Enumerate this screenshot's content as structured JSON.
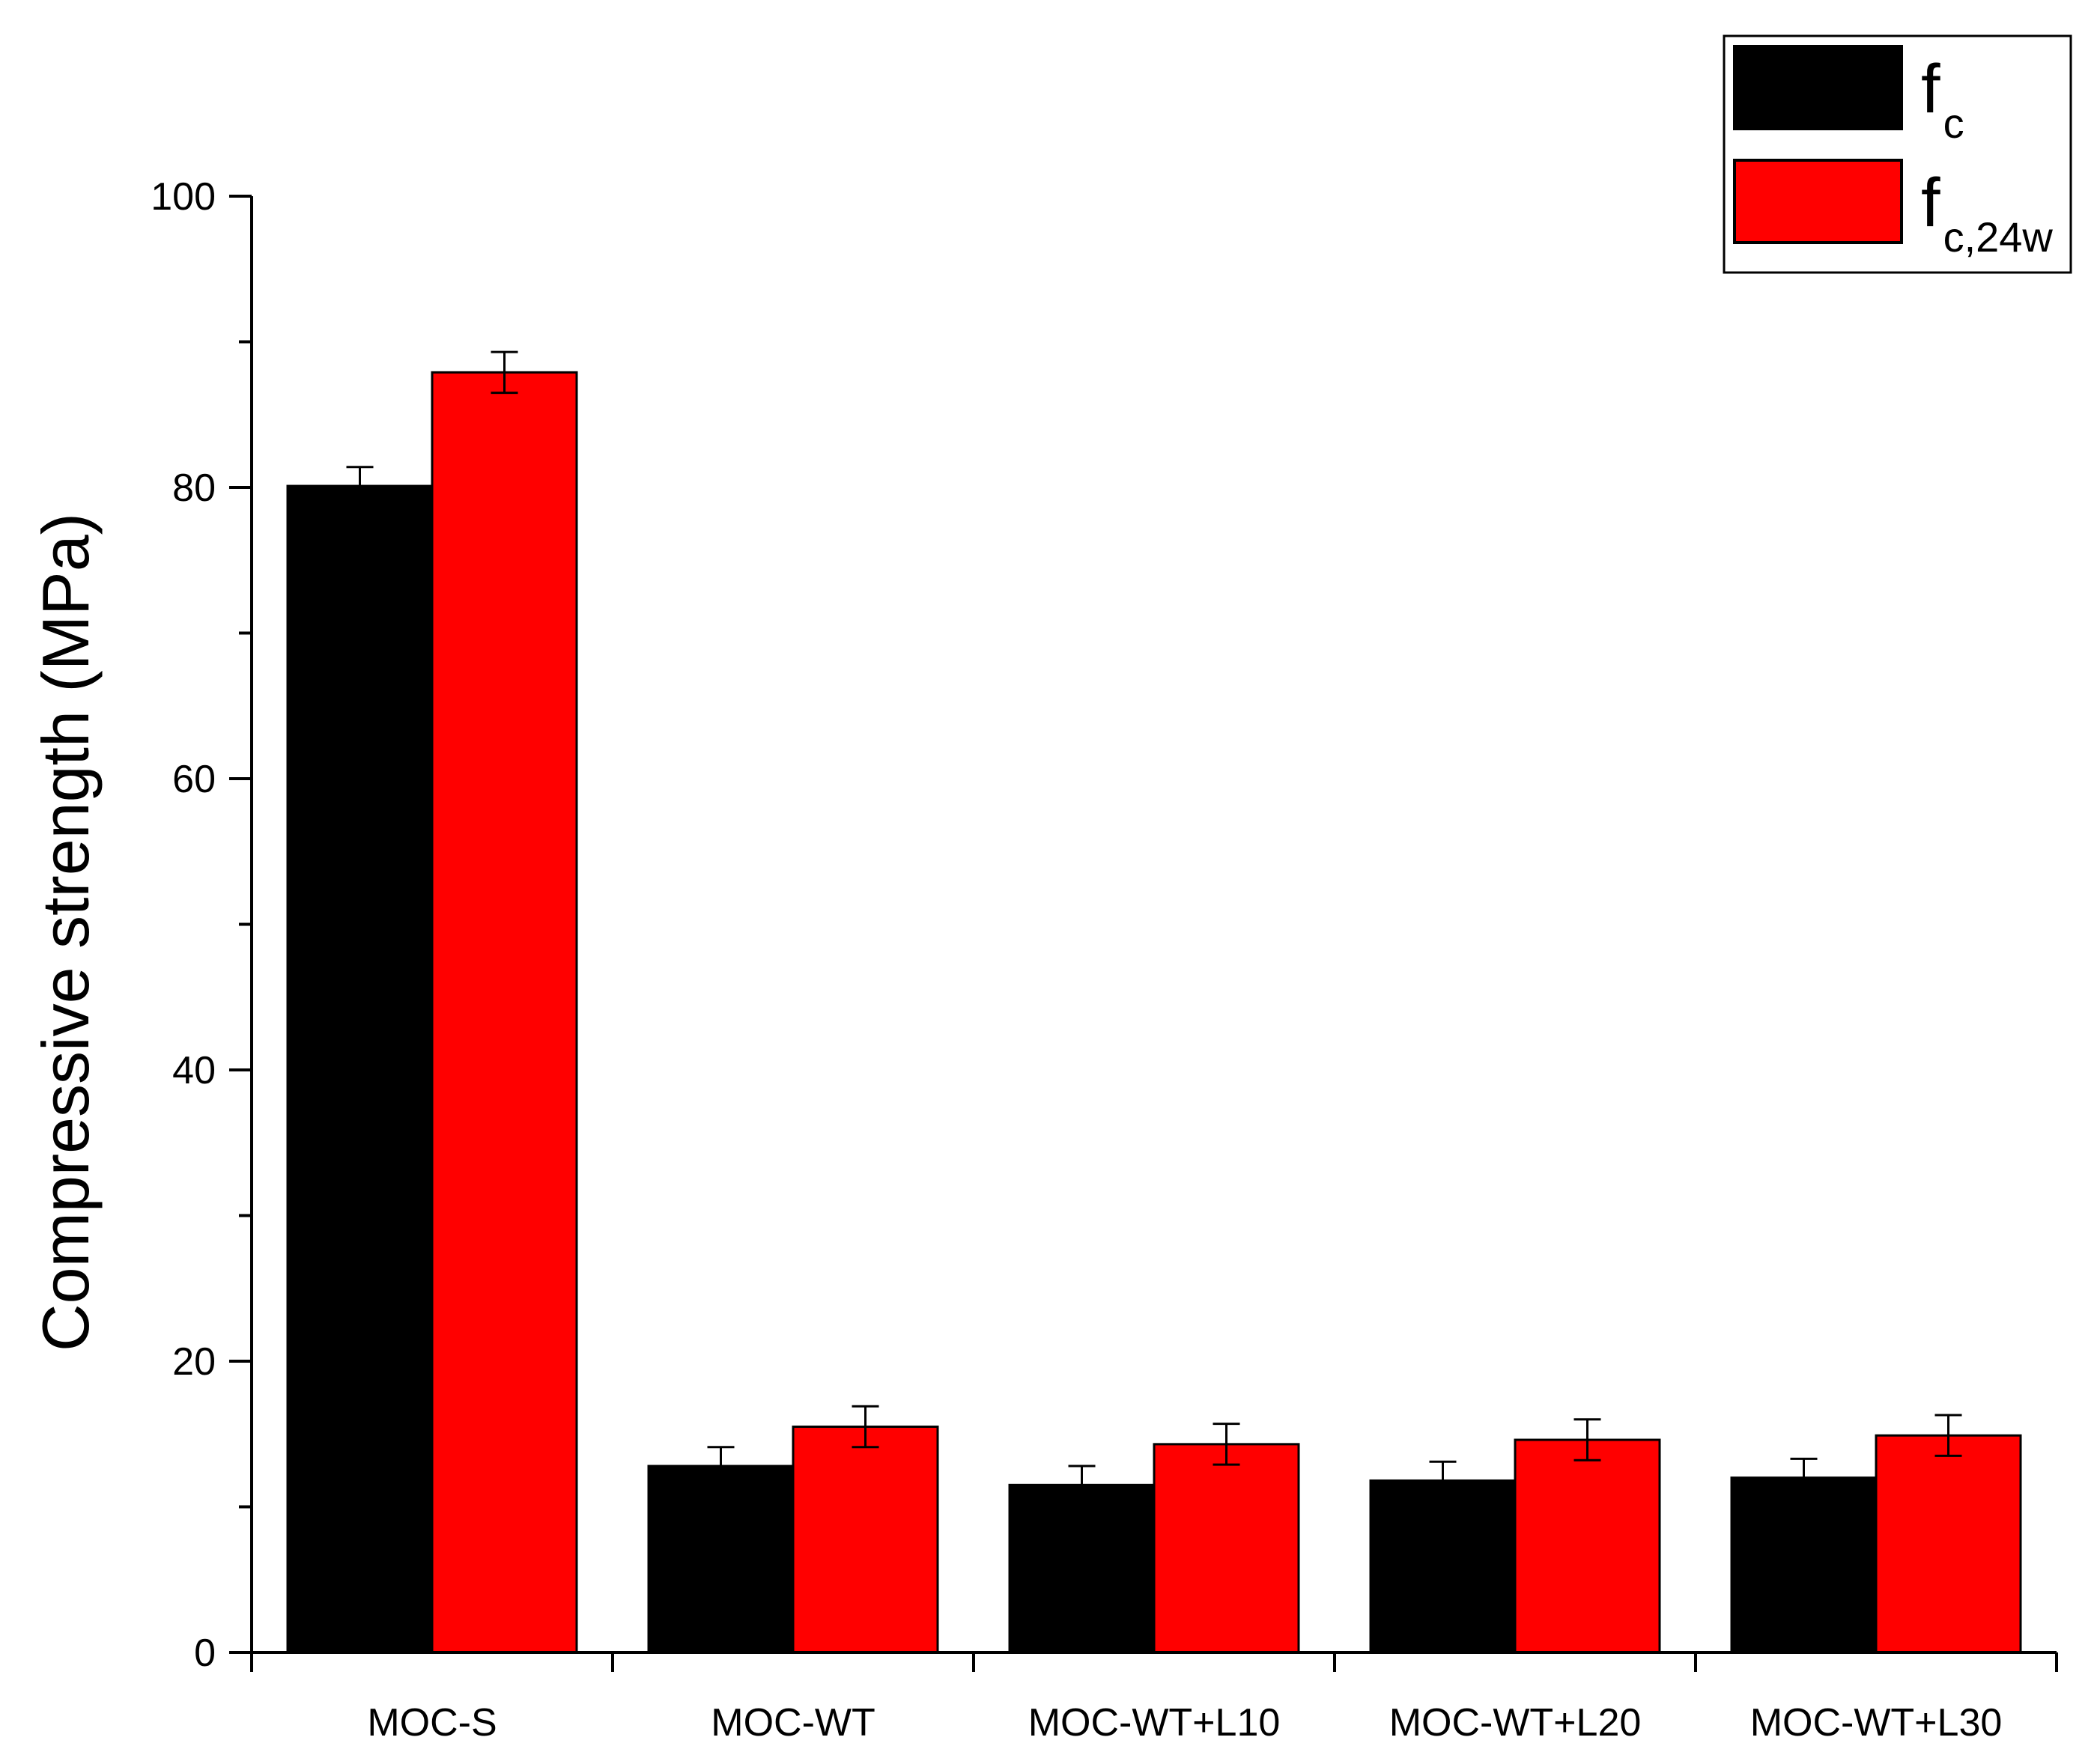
{
  "chart_data": {
    "type": "bar",
    "title": "",
    "xlabel": "",
    "ylabel": "Compressive strength (MPa)",
    "ylim": [
      0,
      100
    ],
    "yticks": [
      0,
      20,
      40,
      60,
      80,
      100
    ],
    "grid": false,
    "legend_position": "top-right",
    "categories": [
      "MOC-S",
      "MOC-WT",
      "MOC-WT+L10",
      "MOC-WT+L20",
      "MOC-WT+L30"
    ],
    "series": [
      {
        "name": "f",
        "subscript": "c",
        "color": "#000000",
        "values": [
          80.1,
          12.8,
          11.5,
          11.8,
          12.0
        ],
        "errors": [
          1.3,
          1.3,
          1.3,
          1.3,
          1.3
        ]
      },
      {
        "name": "f",
        "subscript": "c,24w",
        "color": "#ff0000",
        "values": [
          87.9,
          15.5,
          14.3,
          14.6,
          14.9
        ],
        "errors": [
          1.4,
          1.4,
          1.4,
          1.4,
          1.4
        ]
      }
    ]
  }
}
